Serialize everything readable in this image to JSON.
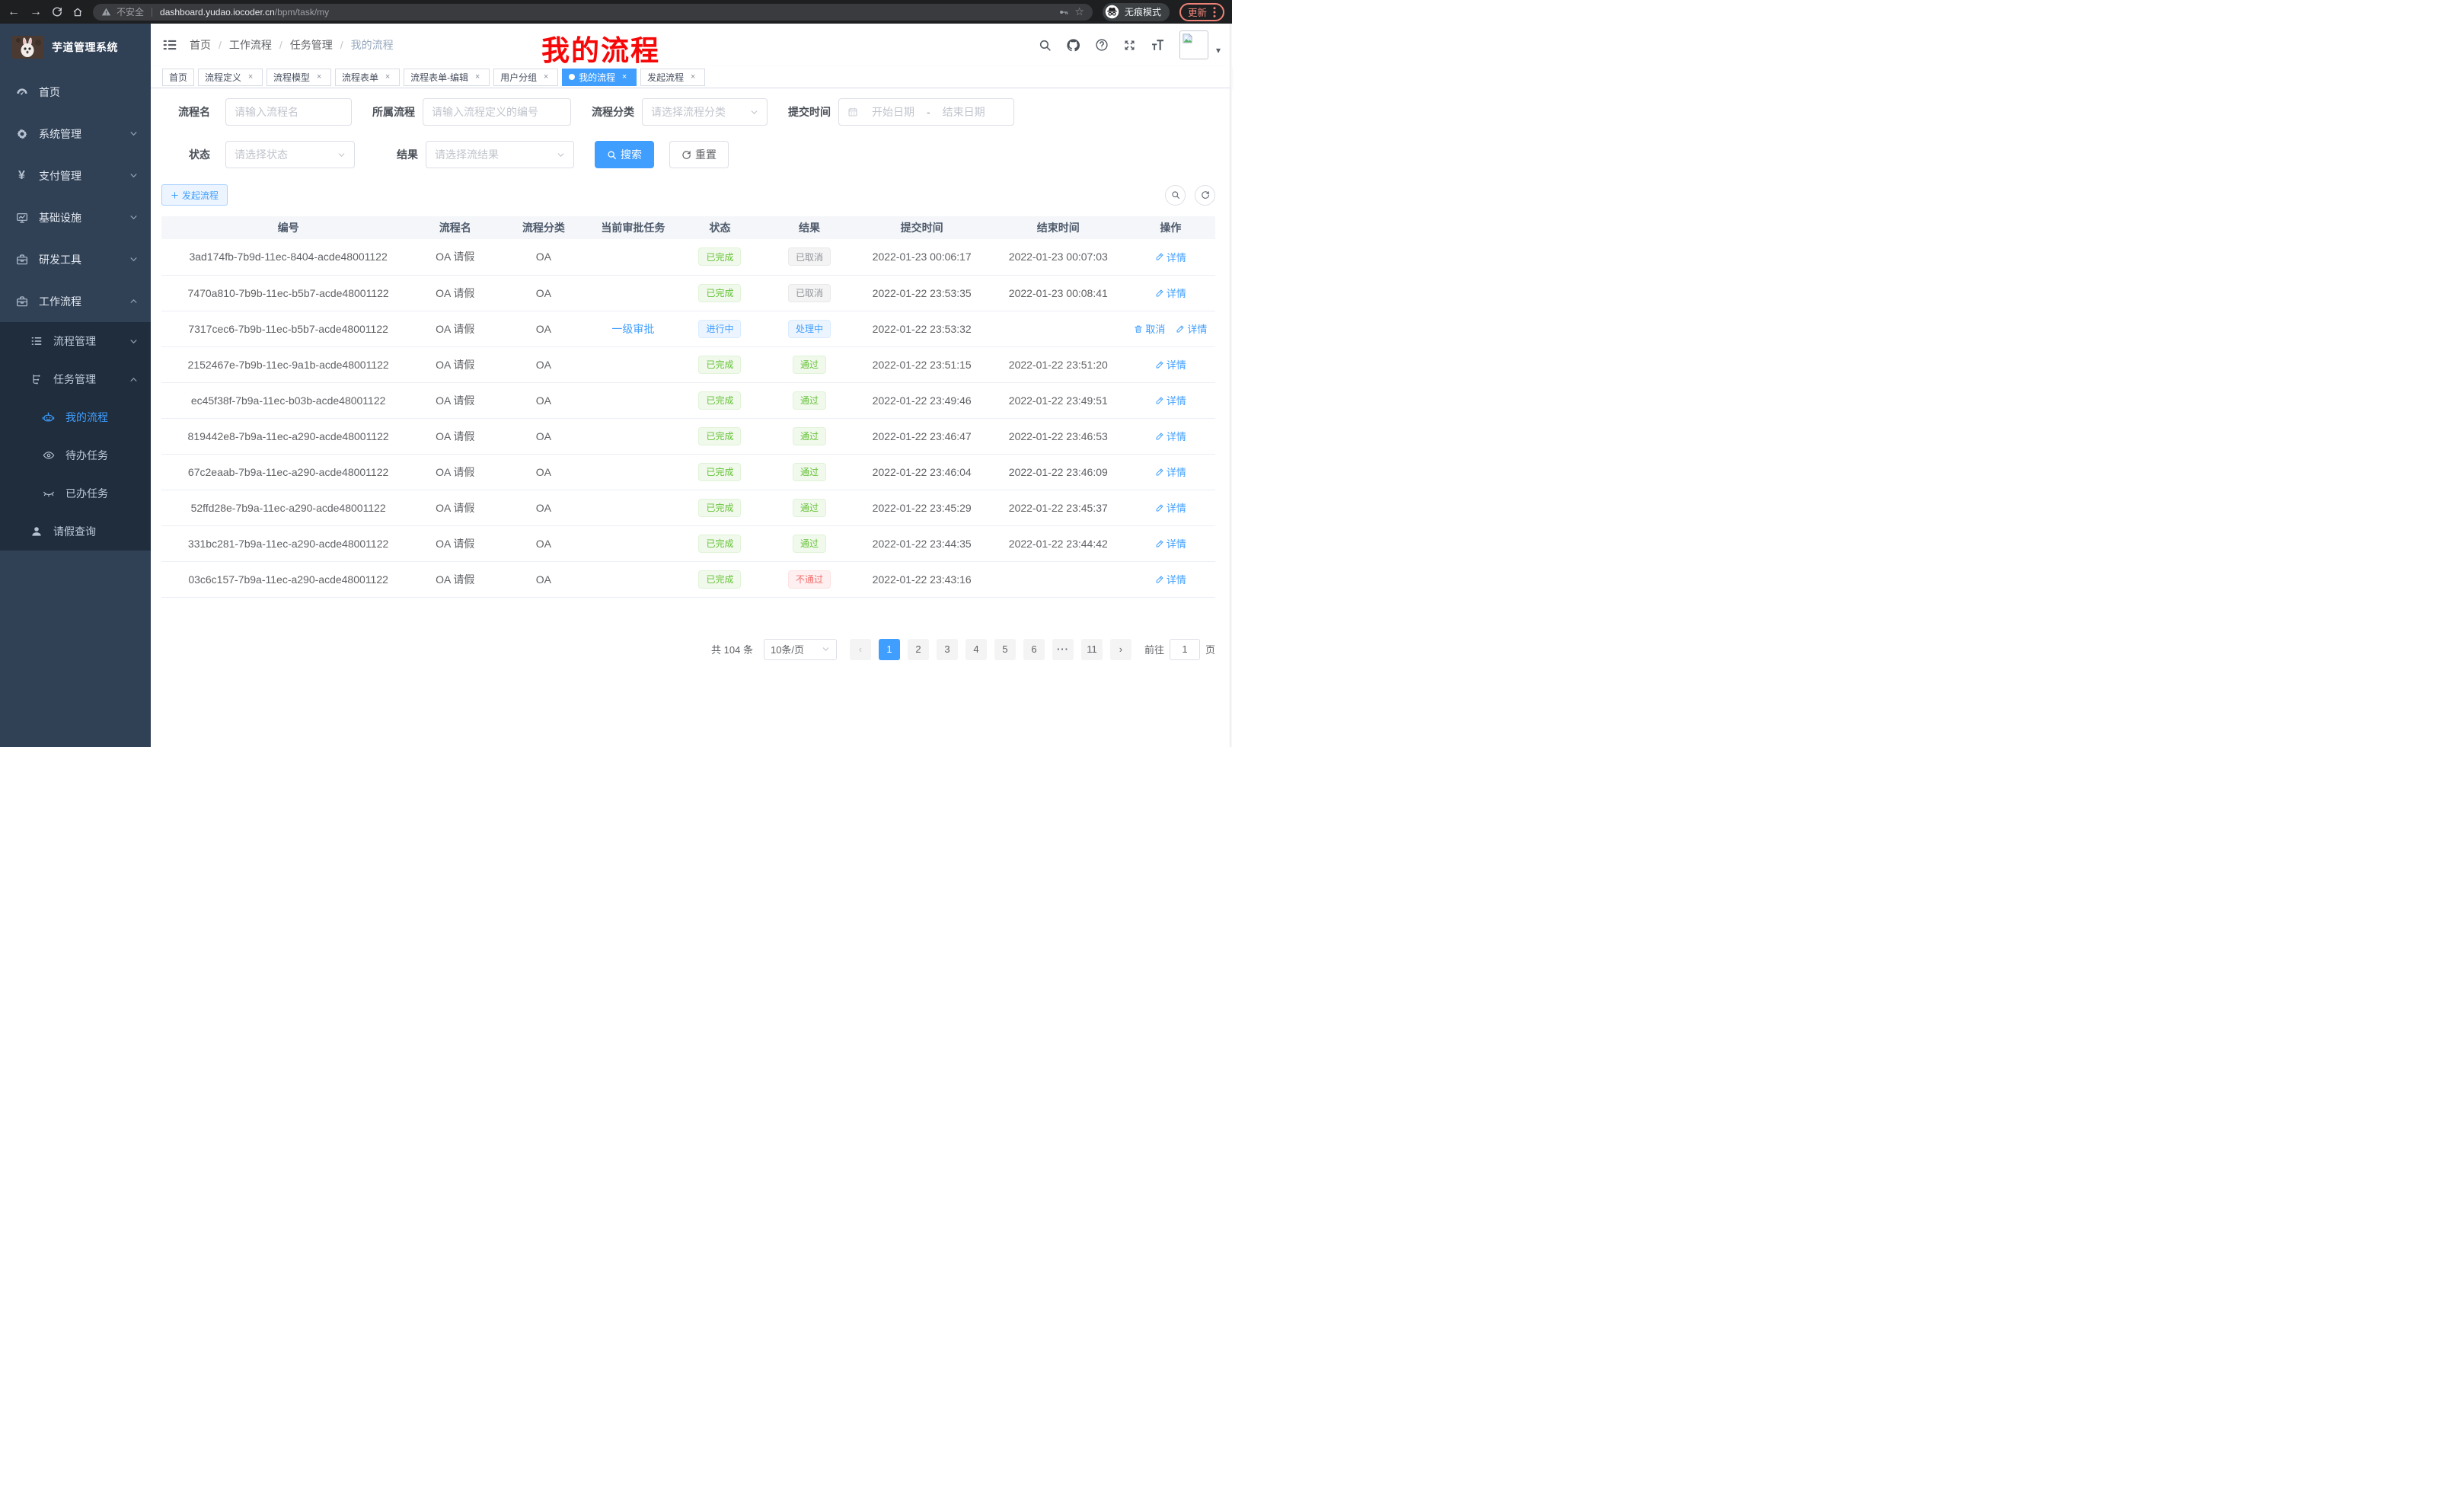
{
  "browser": {
    "security_label": "不安全",
    "url_domain": "dashboard.yudao.iocoder.cn",
    "url_path": "/bpm/task/my",
    "incognito_label": "无痕模式",
    "update_label": "更新"
  },
  "sidebar": {
    "title": "芋道管理系统",
    "items": [
      {
        "label": "首页",
        "icon": "dashboard",
        "level": 1
      },
      {
        "label": "系统管理",
        "icon": "gear",
        "level": 1,
        "chevron": "down"
      },
      {
        "label": "支付管理",
        "icon": "yen",
        "level": 1,
        "chevron": "down"
      },
      {
        "label": "基础设施",
        "icon": "monitor",
        "level": 1,
        "chevron": "down"
      },
      {
        "label": "研发工具",
        "icon": "briefcase",
        "level": 1,
        "chevron": "down"
      },
      {
        "label": "工作流程",
        "icon": "briefcase",
        "level": 1,
        "chevron": "up"
      },
      {
        "label": "流程管理",
        "icon": "list",
        "level": 2,
        "chevron": "down",
        "submenu": true
      },
      {
        "label": "任务管理",
        "icon": "tree",
        "level": 2,
        "chevron": "up",
        "submenu": true
      },
      {
        "label": "我的流程",
        "icon": "robot",
        "level": 3,
        "submenu": true,
        "active": true
      },
      {
        "label": "待办任务",
        "icon": "eye-open",
        "level": 3,
        "submenu": true
      },
      {
        "label": "已办任务",
        "icon": "eye-closed",
        "level": 3,
        "submenu": true
      },
      {
        "label": "请假查询",
        "icon": "user",
        "level": 2,
        "submenu": true
      }
    ]
  },
  "navbar": {
    "breadcrumb": [
      "首页",
      "工作流程",
      "任务管理",
      "我的流程"
    ],
    "annotation": "我的流程"
  },
  "tabs": [
    {
      "label": "首页"
    },
    {
      "label": "流程定义",
      "closable": true
    },
    {
      "label": "流程模型",
      "closable": true
    },
    {
      "label": "流程表单",
      "closable": true
    },
    {
      "label": "流程表单-编辑",
      "closable": true
    },
    {
      "label": "用户分组",
      "closable": true
    },
    {
      "label": "我的流程",
      "closable": true,
      "active": true
    },
    {
      "label": "发起流程",
      "closable": true
    }
  ],
  "filters": {
    "name_label": "流程名",
    "name_placeholder": "请输入流程名",
    "definition_label": "所属流程",
    "definition_placeholder": "请输入流程定义的编号",
    "category_label": "流程分类",
    "category_placeholder": "请选择流程分类",
    "submit_time_label": "提交时间",
    "date_start_placeholder": "开始日期",
    "date_separator": "-",
    "date_end_placeholder": "结束日期",
    "status_label": "状态",
    "status_placeholder": "请选择状态",
    "result_label": "结果",
    "result_placeholder": "请选择流结果",
    "search_label": "搜索",
    "reset_label": "重置"
  },
  "toolbar": {
    "create_label": "发起流程"
  },
  "table": {
    "columns": [
      "编号",
      "流程名",
      "流程分类",
      "当前审批任务",
      "状态",
      "结果",
      "提交时间",
      "结束时间",
      "操作"
    ],
    "rows": [
      {
        "id": "3ad174fb-7b9d-11ec-8404-acde48001122",
        "name": "OA 请假",
        "category": "OA",
        "task": "",
        "status": "已完成",
        "status_type": "success",
        "result": "已取消",
        "result_type": "info",
        "submit_time": "2022-01-23 00:06:17",
        "end_time": "2022-01-23 00:07:03",
        "actions": [
          {
            "label": "详情",
            "icon": "edit"
          }
        ]
      },
      {
        "id": "7470a810-7b9b-11ec-b5b7-acde48001122",
        "name": "OA 请假",
        "category": "OA",
        "task": "",
        "status": "已完成",
        "status_type": "success",
        "result": "已取消",
        "result_type": "info",
        "submit_time": "2022-01-22 23:53:35",
        "end_time": "2022-01-23 00:08:41",
        "actions": [
          {
            "label": "详情",
            "icon": "edit"
          }
        ]
      },
      {
        "id": "7317cec6-7b9b-11ec-b5b7-acde48001122",
        "name": "OA 请假",
        "category": "OA",
        "task": "一级审批",
        "status": "进行中",
        "status_type": "primary",
        "result": "处理中",
        "result_type": "primary",
        "submit_time": "2022-01-22 23:53:32",
        "end_time": "",
        "actions": [
          {
            "label": "取消",
            "icon": "trash"
          },
          {
            "label": "详情",
            "icon": "edit"
          }
        ]
      },
      {
        "id": "2152467e-7b9b-11ec-9a1b-acde48001122",
        "name": "OA 请假",
        "category": "OA",
        "task": "",
        "status": "已完成",
        "status_type": "success",
        "result": "通过",
        "result_type": "success",
        "submit_time": "2022-01-22 23:51:15",
        "end_time": "2022-01-22 23:51:20",
        "actions": [
          {
            "label": "详情",
            "icon": "edit"
          }
        ]
      },
      {
        "id": "ec45f38f-7b9a-11ec-b03b-acde48001122",
        "name": "OA 请假",
        "category": "OA",
        "task": "",
        "status": "已完成",
        "status_type": "success",
        "result": "通过",
        "result_type": "success",
        "submit_time": "2022-01-22 23:49:46",
        "end_time": "2022-01-22 23:49:51",
        "actions": [
          {
            "label": "详情",
            "icon": "edit"
          }
        ]
      },
      {
        "id": "819442e8-7b9a-11ec-a290-acde48001122",
        "name": "OA 请假",
        "category": "OA",
        "task": "",
        "status": "已完成",
        "status_type": "success",
        "result": "通过",
        "result_type": "success",
        "submit_time": "2022-01-22 23:46:47",
        "end_time": "2022-01-22 23:46:53",
        "actions": [
          {
            "label": "详情",
            "icon": "edit"
          }
        ]
      },
      {
        "id": "67c2eaab-7b9a-11ec-a290-acde48001122",
        "name": "OA 请假",
        "category": "OA",
        "task": "",
        "status": "已完成",
        "status_type": "success",
        "result": "通过",
        "result_type": "success",
        "submit_time": "2022-01-22 23:46:04",
        "end_time": "2022-01-22 23:46:09",
        "actions": [
          {
            "label": "详情",
            "icon": "edit"
          }
        ]
      },
      {
        "id": "52ffd28e-7b9a-11ec-a290-acde48001122",
        "name": "OA 请假",
        "category": "OA",
        "task": "",
        "status": "已完成",
        "status_type": "success",
        "result": "通过",
        "result_type": "success",
        "submit_time": "2022-01-22 23:45:29",
        "end_time": "2022-01-22 23:45:37",
        "actions": [
          {
            "label": "详情",
            "icon": "edit"
          }
        ]
      },
      {
        "id": "331bc281-7b9a-11ec-a290-acde48001122",
        "name": "OA 请假",
        "category": "OA",
        "task": "",
        "status": "已完成",
        "status_type": "success",
        "result": "通过",
        "result_type": "success",
        "submit_time": "2022-01-22 23:44:35",
        "end_time": "2022-01-22 23:44:42",
        "actions": [
          {
            "label": "详情",
            "icon": "edit"
          }
        ]
      },
      {
        "id": "03c6c157-7b9a-11ec-a290-acde48001122",
        "name": "OA 请假",
        "category": "OA",
        "task": "",
        "status": "已完成",
        "status_type": "success",
        "result": "不通过",
        "result_type": "danger",
        "submit_time": "2022-01-22 23:43:16",
        "end_time": "",
        "actions": [
          {
            "label": "详情",
            "icon": "edit"
          }
        ]
      }
    ]
  },
  "pagination": {
    "total_label": "共 104 条",
    "page_size_label": "10条/页",
    "pages": [
      "1",
      "2",
      "3",
      "4",
      "5",
      "6",
      "···",
      "11"
    ],
    "active_page": "1",
    "jump_prefix": "前往",
    "jump_value": "1",
    "jump_suffix": "页"
  },
  "colors": {
    "accent": "#409eff",
    "success": "#67c23a",
    "danger": "#f56c6c",
    "info": "#909399",
    "sidebar_bg": "#304156",
    "submenu_bg": "#1f2d3d",
    "annotation_red": "#f70808",
    "update_red": "#ee8277"
  }
}
